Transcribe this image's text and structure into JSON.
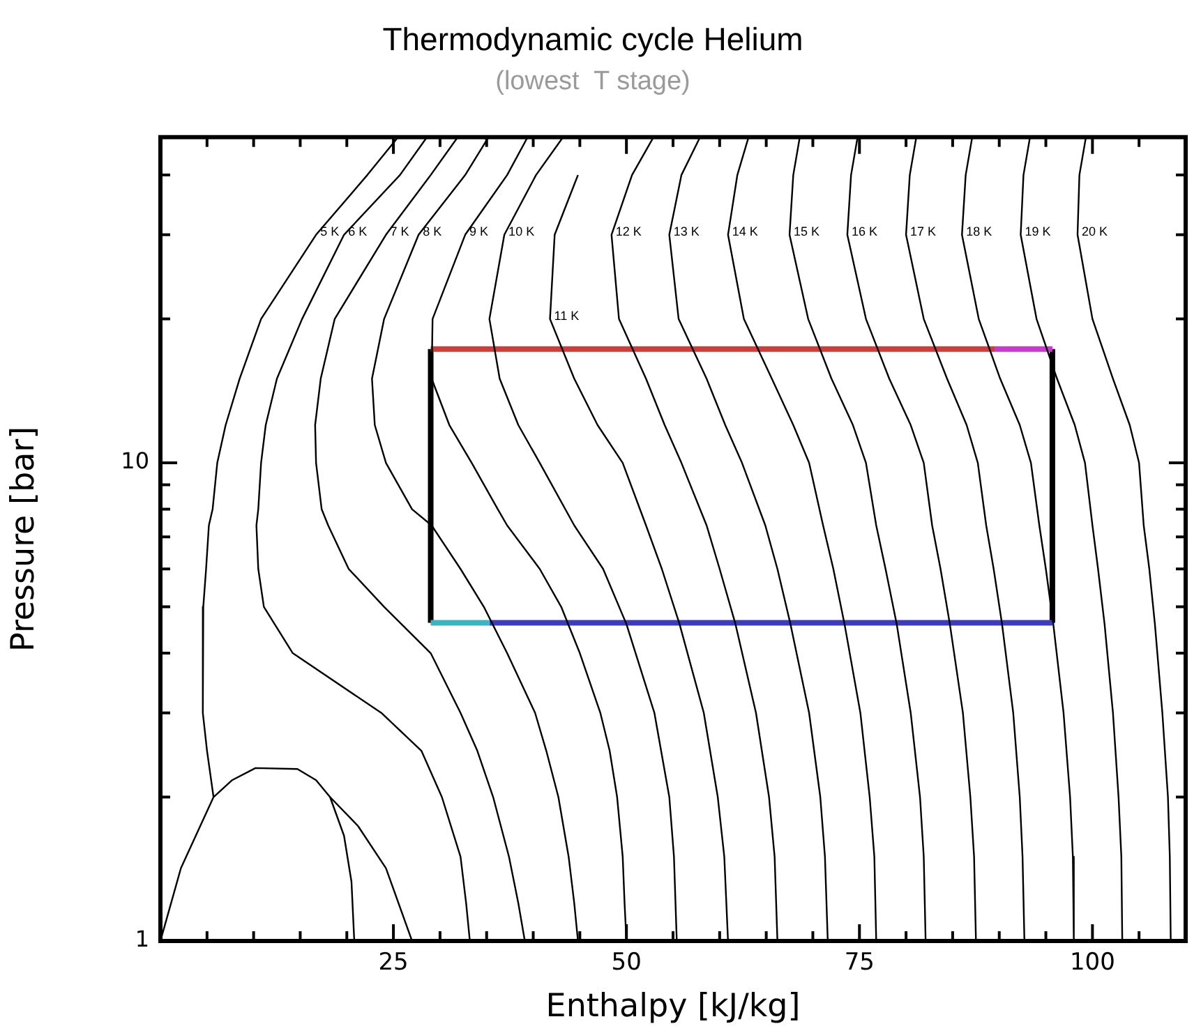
{
  "chart_data": {
    "type": "line",
    "title": "Thermodynamic cycle Helium",
    "subtitle": "(lowest  T stage)",
    "xlabel": "Enthalpy [kJ/kg]",
    "ylabel": "Pressure [bar]",
    "log": "y",
    "xlim": [
      0,
      110
    ],
    "ylim": [
      1,
      48
    ],
    "xticks": [
      {
        "value": 5,
        "label": null
      },
      {
        "value": 10,
        "label": null
      },
      {
        "value": 15,
        "label": null
      },
      {
        "value": 20,
        "label": null
      },
      25,
      {
        "value": 30,
        "label": null
      },
      {
        "value": 35,
        "label": null
      },
      {
        "value": 40,
        "label": null
      },
      {
        "value": 45,
        "label": null
      },
      50,
      {
        "value": 55,
        "label": null
      },
      {
        "value": 60,
        "label": null
      },
      {
        "value": 65,
        "label": null
      },
      {
        "value": 70,
        "label": null
      },
      75,
      {
        "value": 80,
        "label": null
      },
      {
        "value": 85,
        "label": null
      },
      {
        "value": 90,
        "label": null
      },
      {
        "value": 95,
        "label": null
      },
      100,
      {
        "value": 105,
        "label": null
      }
    ],
    "yticks": [
      1,
      {
        "value": 2,
        "label": null
      },
      {
        "value": 3,
        "label": null
      },
      {
        "value": 4,
        "label": null
      },
      {
        "value": 5,
        "label": null
      },
      {
        "value": 6,
        "label": null
      },
      {
        "value": 7,
        "label": null
      },
      {
        "value": 8,
        "label": null
      },
      {
        "value": 9,
        "label": null
      },
      10,
      {
        "value": 20,
        "label": null
      },
      {
        "value": 30,
        "label": null
      },
      {
        "value": 40,
        "label": null
      }
    ],
    "series": [
      {
        "color": "#000000",
        "x": [
          0,
          2.2,
          5.7,
          7.7,
          10.2,
          14.7,
          16.7,
          18.2,
          19.7,
          20.5,
          20.8
        ],
        "values": [
          1,
          1.42,
          2.0,
          2.17,
          2.3,
          2.29,
          2.17,
          2.0,
          1.66,
          1.33,
          1
        ]
      },
      {
        "name": "5 K",
        "color": "#000000",
        "x": [
          25.5,
          22.2,
          16.7,
          10.8,
          8.5,
          7.0,
          6.1,
          5.6,
          5.2,
          4.9,
          4.6,
          4.5,
          4.6,
          5.0,
          5.7,
          null,
          18.2,
          21.2,
          24.2,
          27.0
        ],
        "values": [
          48,
          40,
          30,
          20,
          15,
          12,
          10,
          8,
          7.4,
          6,
          5,
          4,
          3,
          2.5,
          2.0,
          null,
          2.0,
          1.74,
          1.42,
          1
        ]
      },
      {
        "name": "6 K",
        "color": "#000000",
        "x": [
          28.6,
          25.7,
          19.7,
          15.2,
          12.5,
          11.3,
          10.8,
          10.5,
          10.3,
          10.5,
          11.1,
          14.2,
          23.7,
          28.0,
          30.2,
          32.2,
          32.8,
          33.2
        ],
        "values": [
          48,
          40,
          30,
          20,
          15,
          12,
          10,
          8,
          7.4,
          6,
          5,
          4,
          3,
          2.5,
          2,
          1.5,
          1.2,
          1
        ]
      },
      {
        "name": "7 K",
        "color": "#000000",
        "x": [
          31.9,
          29.0,
          24.2,
          18.7,
          17.2,
          16.6,
          16.7,
          17.3,
          18.0,
          20.2,
          24.0,
          29.0,
          32.2,
          34.0,
          35.7,
          37.4,
          38.4,
          39.1
        ],
        "values": [
          48,
          40,
          30,
          20,
          15,
          12,
          10,
          8,
          7.4,
          6,
          5,
          4,
          3,
          2.5,
          2,
          1.5,
          1.2,
          1
        ]
      },
      {
        "name": "8 K",
        "color": "#000000",
        "x": [
          35.2,
          32.7,
          27.7,
          24.0,
          22.7,
          23.0,
          24.2,
          27.0,
          29.1,
          32.2,
          34.7,
          37.2,
          40.2,
          41.4,
          42.7,
          43.8,
          44.4,
          44.8
        ],
        "values": [
          48,
          40,
          30,
          20,
          15,
          12,
          10,
          8,
          7.4,
          6,
          5,
          4,
          3,
          2.5,
          2,
          1.5,
          1.2,
          1
        ]
      },
      {
        "name": "9 K",
        "color": "#000000",
        "x": [
          39.4,
          37.2,
          32.7,
          29.2,
          29.1,
          31.0,
          33.4,
          36.2,
          37.2,
          40.7,
          43.0,
          45.0,
          47.2,
          48.2,
          49.0,
          49.6,
          49.8,
          50.0
        ],
        "values": [
          48,
          40,
          30,
          20,
          15,
          12,
          10,
          8,
          7.4,
          6,
          5,
          4,
          3,
          2.5,
          2,
          1.5,
          1.2,
          1
        ]
      },
      {
        "name": "10 K",
        "color": "#000000",
        "x": [
          43.2,
          40.3,
          36.9,
          35.3,
          36.4,
          38.4,
          40.7,
          44.4,
          47.5,
          50.0,
          53.0,
          54.6,
          55.1,
          55.4
        ],
        "values": [
          48,
          40,
          30,
          20,
          15,
          12,
          10,
          7.4,
          6,
          4.6,
          3,
          2,
          1.5,
          1
        ]
      },
      {
        "name": "11 K",
        "color": "#000000",
        "x": [
          44.8,
          42.3,
          41.8,
          44.4,
          46.9,
          49.6,
          52.1,
          53.8,
          55.7,
          58.3,
          59.8,
          60.5,
          60.9
        ],
        "values": [
          40,
          30,
          20,
          15,
          12,
          10,
          7.4,
          6,
          4.6,
          3,
          2,
          1.5,
          1
        ]
      },
      {
        "name": "12 K",
        "color": "#000000",
        "x": [
          52.9,
          50.6,
          48.4,
          49.2,
          52.1,
          54.1,
          55.9,
          58.6,
          60.0,
          61.7,
          63.9,
          65.3,
          65.9,
          66.2
        ],
        "values": [
          48,
          40,
          30,
          20,
          15,
          12,
          10,
          7.4,
          6,
          4.6,
          3,
          2,
          1.5,
          1
        ]
      },
      {
        "name": "13 K",
        "color": "#000000",
        "x": [
          57.9,
          55.9,
          54.6,
          55.6,
          58.6,
          60.6,
          62.4,
          64.9,
          66.2,
          67.6,
          69.6,
          70.8,
          71.3,
          71.6
        ],
        "values": [
          48,
          40,
          30,
          20,
          15,
          12,
          10,
          7.4,
          6,
          4.6,
          3,
          2,
          1.5,
          1
        ]
      },
      {
        "name": "14 K",
        "color": "#000000",
        "x": [
          63.1,
          61.9,
          60.9,
          62.6,
          65.6,
          67.9,
          69.6,
          71.1,
          72.2,
          73.4,
          75.1,
          76.1,
          76.6,
          76.8
        ],
        "values": [
          48,
          40,
          30,
          20,
          15,
          12,
          10,
          7.4,
          6,
          4.6,
          3,
          2,
          1.5,
          1
        ]
      },
      {
        "name": "15 K",
        "color": "#000000",
        "x": [
          68.6,
          67.9,
          67.5,
          69.5,
          72.0,
          74.3,
          75.7,
          76.8,
          77.8,
          79.0,
          80.5,
          81.5,
          81.9,
          82.1
        ],
        "values": [
          48,
          40,
          30,
          20,
          15,
          12,
          10,
          7.4,
          6,
          4.6,
          3,
          2,
          1.5,
          1
        ]
      },
      {
        "name": "16 K",
        "color": "#000000",
        "x": [
          74.8,
          74.1,
          73.7,
          75.7,
          78.2,
          80.5,
          81.9,
          82.8,
          83.7,
          84.7,
          86.1,
          86.9,
          87.3,
          87.5
        ],
        "values": [
          48,
          40,
          30,
          20,
          15,
          12,
          10,
          7.4,
          6,
          4.6,
          3,
          2,
          1.5,
          1
        ]
      },
      {
        "name": "17 K",
        "color": "#000000",
        "x": [
          81.1,
          80.4,
          80.0,
          81.9,
          84.4,
          86.5,
          87.7,
          88.6,
          89.4,
          90.3,
          91.5,
          92.2,
          92.5,
          92.7
        ],
        "values": [
          48,
          40,
          30,
          20,
          15,
          12,
          10,
          7.4,
          6,
          4.6,
          3,
          2,
          1.5,
          1
        ]
      },
      {
        "name": "18 K",
        "color": "#000000",
        "x": [
          87.1,
          86.4,
          86.0,
          87.8,
          90.1,
          92.2,
          93.4,
          94.3,
          95.0,
          95.8,
          96.9,
          97.6,
          97.9,
          98.0
        ],
        "values": [
          48,
          40,
          30,
          20,
          15,
          12,
          10,
          7.4,
          6,
          4.6,
          3,
          2,
          1.5,
          1
        ]
      },
      {
        "name": "19 K",
        "color": "#000000",
        "x": [
          93.3,
          92.6,
          92.3,
          94.0,
          96.2,
          98.1,
          99.2,
          100.0,
          100.6,
          101.3,
          102.2,
          102.8,
          103.1,
          103.2
        ],
        "values": [
          48,
          40,
          30,
          20,
          15,
          12,
          10,
          7.4,
          6,
          4.6,
          3,
          2,
          1.5,
          1
        ]
      },
      {
        "name": "20 K",
        "color": "#000000",
        "x": [
          99.3,
          98.6,
          98.4,
          100.0,
          102.2,
          104.0,
          105.0,
          105.5,
          106.1,
          106.7,
          107.5,
          108.1,
          108.3,
          108.4
        ],
        "values": [
          48,
          40,
          30,
          20,
          15,
          12,
          10,
          7.4,
          6,
          4.6,
          3,
          2,
          1.5,
          1
        ]
      },
      {
        "color": "#c8403c",
        "x": [
          29.0,
          89.5
        ],
        "values": [
          17.3,
          17.3
        ]
      },
      {
        "color": "#c43cc8",
        "x": [
          89.5,
          95.7
        ],
        "values": [
          17.3,
          17.3
        ]
      },
      {
        "color": "#3cb4c0",
        "x": [
          29.0,
          35.3
        ],
        "values": [
          4.63,
          4.63
        ]
      },
      {
        "color": "#3c3cbc",
        "x": [
          35.3,
          95.7
        ],
        "values": [
          4.63,
          4.63
        ]
      },
      {
        "color": "#000000",
        "x": [
          29.0,
          29.0
        ],
        "values": [
          4.63,
          17.3
        ]
      },
      {
        "color": "#000000",
        "x": [
          95.7,
          95.7
        ],
        "values": [
          4.63,
          17.3
        ]
      }
    ]
  }
}
